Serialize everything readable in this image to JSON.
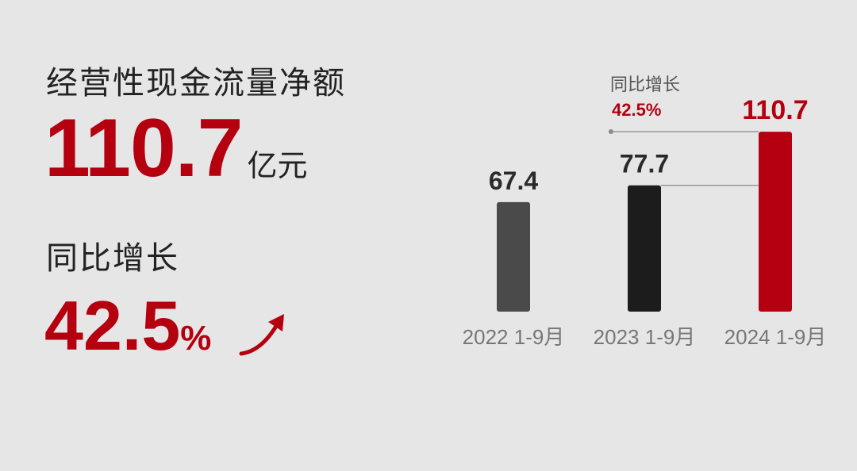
{
  "kpi": {
    "title": "经营性现金流量净额",
    "value": "110.7",
    "unit": "亿元",
    "growth_label": "同比增长",
    "growth_value": "42.5",
    "growth_unit": "%"
  },
  "chart_data": {
    "type": "bar",
    "categories": [
      "2022 1-9月",
      "2023 1-9月",
      "2024 1-9月"
    ],
    "values": [
      67.4,
      77.7,
      110.7
    ],
    "value_labels": [
      "67.4",
      "77.7",
      "110.7"
    ],
    "bar_colors": [
      "#4a4a4a",
      "#1c1c1c",
      "#b4000f"
    ],
    "annotation": {
      "label": "同比增长",
      "value": "42.5%"
    },
    "title": "",
    "xlabel": "",
    "ylabel": "",
    "grid": false,
    "legend": "none"
  },
  "colors": {
    "accent": "#b4000f",
    "text": "#222222",
    "muted": "#777777",
    "background": "#e6e6e6"
  }
}
